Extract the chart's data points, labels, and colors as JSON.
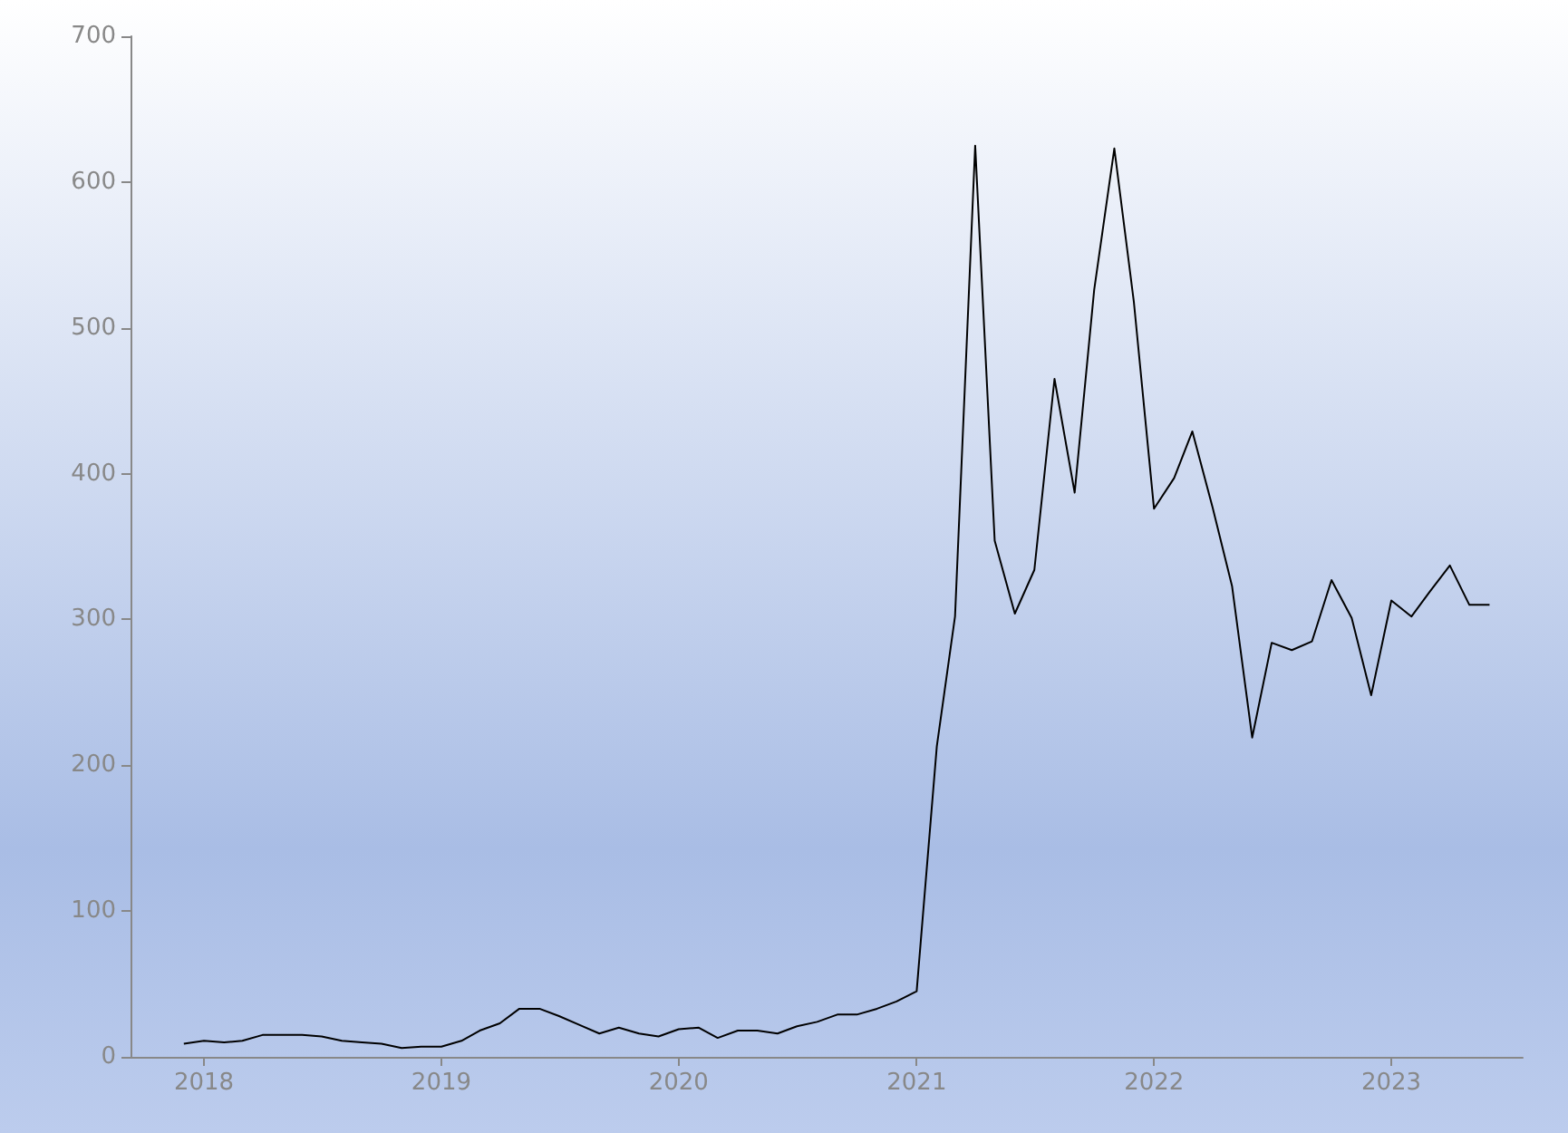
{
  "chart_data": {
    "type": "line",
    "x": [
      "2017-12",
      "2018-01",
      "2018-02",
      "2018-03",
      "2018-04",
      "2018-05",
      "2018-06",
      "2018-07",
      "2018-08",
      "2018-09",
      "2018-10",
      "2018-11",
      "2018-12",
      "2019-01",
      "2019-02",
      "2019-03",
      "2019-04",
      "2019-05",
      "2019-06",
      "2019-07",
      "2019-08",
      "2019-09",
      "2019-10",
      "2019-11",
      "2019-12",
      "2020-01",
      "2020-02",
      "2020-03",
      "2020-04",
      "2020-05",
      "2020-06",
      "2020-07",
      "2020-08",
      "2020-09",
      "2020-10",
      "2020-11",
      "2020-12",
      "2021-01",
      "2021-02",
      "2021-03",
      "2021-04",
      "2021-05",
      "2021-06",
      "2021-07",
      "2021-08",
      "2021-09",
      "2021-10",
      "2021-11",
      "2021-12",
      "2022-01",
      "2022-02",
      "2022-03",
      "2022-04",
      "2022-05",
      "2022-06",
      "2022-07",
      "2022-08",
      "2022-09",
      "2022-10",
      "2022-11",
      "2022-12",
      "2023-01",
      "2023-02",
      "2023-03",
      "2023-04",
      "2023-05",
      "2023-06"
    ],
    "series": [
      {
        "color": "#000000",
        "values": [
          9,
          11,
          10,
          11,
          15,
          15,
          15,
          14,
          11,
          10,
          9,
          6,
          7,
          7,
          11,
          18,
          23,
          33,
          33,
          28,
          22,
          16,
          20,
          16,
          14,
          19,
          20,
          13,
          18,
          18,
          16,
          21,
          24,
          29,
          29,
          33,
          38,
          45,
          213,
          302,
          625,
          354,
          304,
          334,
          465,
          387,
          526,
          623,
          518,
          376,
          397,
          429,
          377,
          323,
          219,
          284,
          279,
          285,
          327,
          301,
          248,
          313,
          302,
          319,
          337,
          310,
          310
        ]
      }
    ],
    "xlim": [
      "2017-09-10",
      "2023-07-22"
    ],
    "xticks": [
      "2018",
      "2019",
      "2020",
      "2021",
      "2022",
      "2023"
    ],
    "ylim": [
      0,
      700
    ],
    "yticks": [
      0,
      100,
      200,
      300,
      400,
      500,
      600,
      700
    ],
    "grid": false,
    "marker": "none",
    "line_style": "solid"
  }
}
